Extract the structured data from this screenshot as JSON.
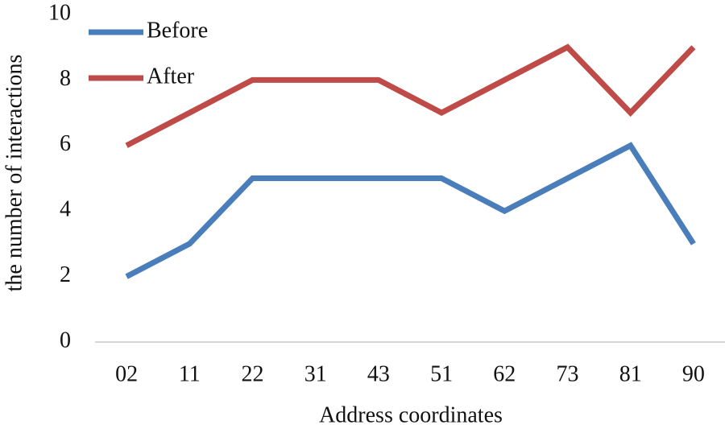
{
  "chart_data": {
    "type": "line",
    "x_label": "Address coordinates",
    "y_label": "the number of interactions",
    "categories": [
      "02",
      "11",
      "22",
      "31",
      "43",
      "51",
      "62",
      "73",
      "81",
      "90"
    ],
    "series": [
      {
        "name": "Before",
        "color": "#4a7ebb",
        "values": [
          2,
          3,
          5,
          5,
          5,
          5,
          4,
          5,
          6,
          3
        ]
      },
      {
        "name": "After",
        "color": "#be4b48",
        "values": [
          6,
          7,
          8,
          8,
          8,
          7,
          8,
          9,
          7,
          9
        ]
      }
    ],
    "ylim": [
      0,
      10
    ],
    "yticks": [
      0,
      2,
      4,
      6,
      8,
      10
    ],
    "grid": false,
    "legend": "top-left"
  }
}
